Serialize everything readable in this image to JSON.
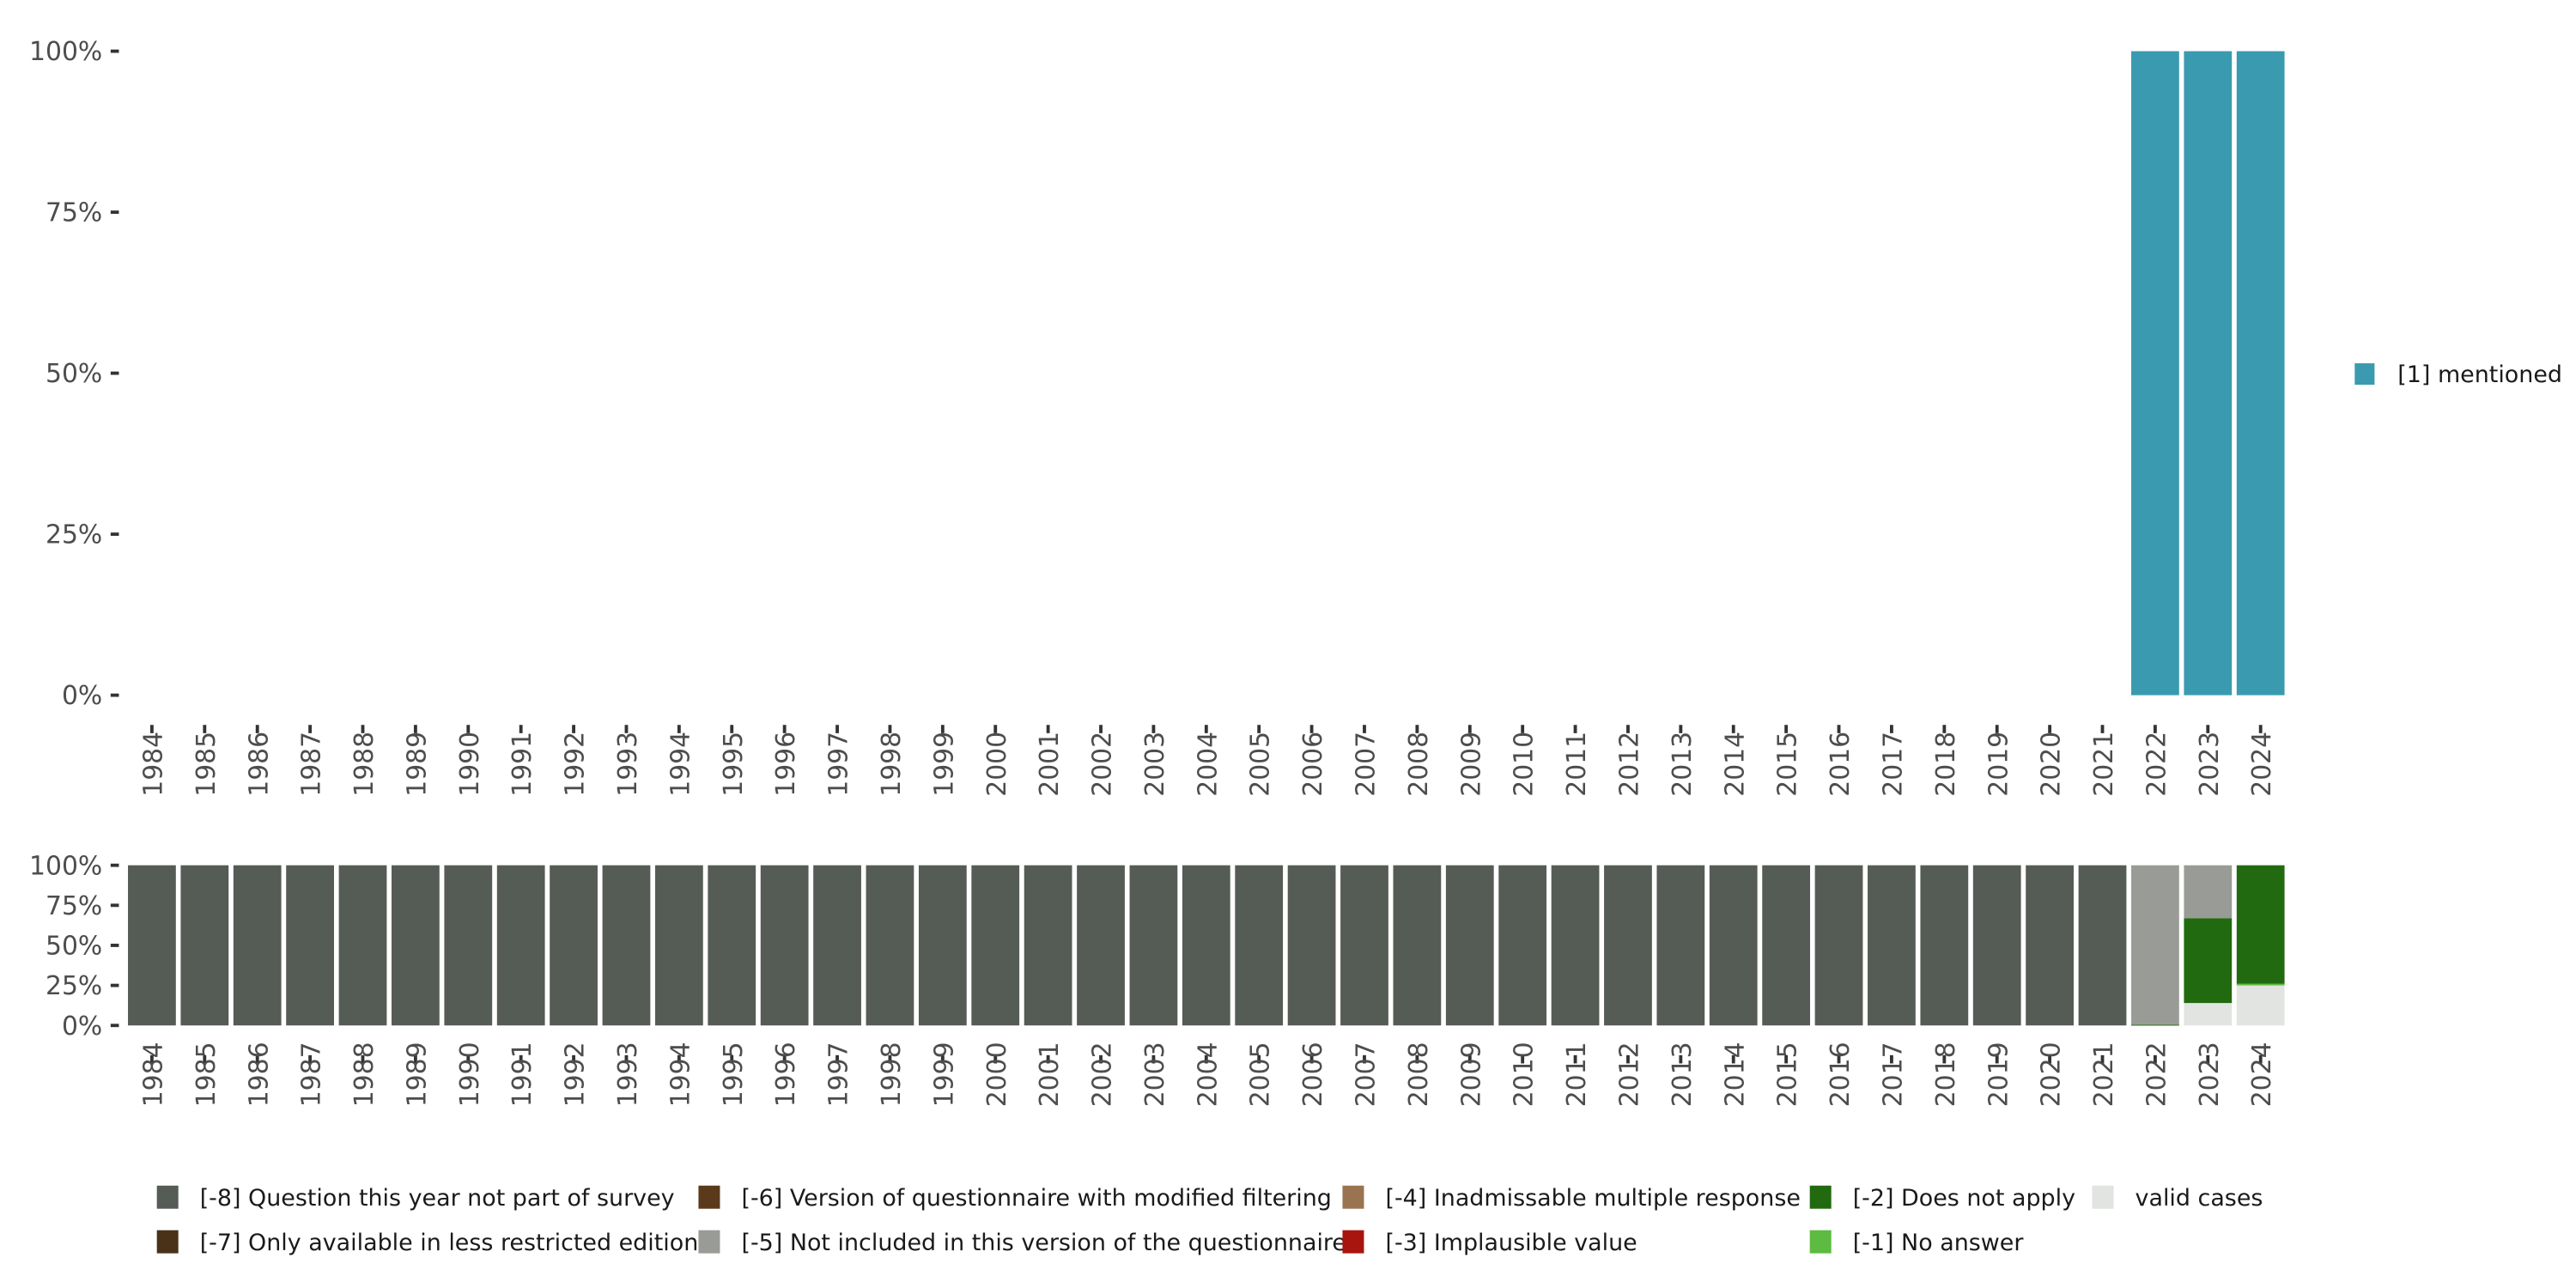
{
  "chart_data": [
    {
      "type": "bar",
      "stacked": true,
      "title": "",
      "xlabel": "",
      "ylabel": "",
      "ylim": [
        0,
        100
      ],
      "yticks": [
        "0%",
        "25%",
        "50%",
        "75%",
        "100%"
      ],
      "categories": [
        "1984",
        "1985",
        "1986",
        "1987",
        "1988",
        "1989",
        "1990",
        "1991",
        "1992",
        "1993",
        "1994",
        "1995",
        "1996",
        "1997",
        "1998",
        "1999",
        "2000",
        "2001",
        "2002",
        "2003",
        "2004",
        "2005",
        "2006",
        "2007",
        "2008",
        "2009",
        "2010",
        "2011",
        "2012",
        "2013",
        "2014",
        "2015",
        "2016",
        "2017",
        "2018",
        "2019",
        "2020",
        "2021",
        "2022",
        "2023",
        "2024"
      ],
      "series": [
        {
          "name": "[1] mentioned",
          "color": "#3a9ab0",
          "values": [
            0,
            0,
            0,
            0,
            0,
            0,
            0,
            0,
            0,
            0,
            0,
            0,
            0,
            0,
            0,
            0,
            0,
            0,
            0,
            0,
            0,
            0,
            0,
            0,
            0,
            0,
            0,
            0,
            0,
            0,
            0,
            0,
            0,
            0,
            0,
            0,
            0,
            0,
            100,
            100,
            100
          ]
        }
      ],
      "legend": "right"
    },
    {
      "type": "bar",
      "stacked": true,
      "title": "",
      "xlabel": "",
      "ylabel": "",
      "ylim": [
        0,
        100
      ],
      "yticks": [
        "0%",
        "25%",
        "50%",
        "75%",
        "100%"
      ],
      "categories": [
        "1984",
        "1985",
        "1986",
        "1987",
        "1988",
        "1989",
        "1990",
        "1991",
        "1992",
        "1993",
        "1994",
        "1995",
        "1996",
        "1997",
        "1998",
        "1999",
        "2000",
        "2001",
        "2002",
        "2003",
        "2004",
        "2005",
        "2006",
        "2007",
        "2008",
        "2009",
        "2010",
        "2011",
        "2012",
        "2013",
        "2014",
        "2015",
        "2016",
        "2017",
        "2018",
        "2019",
        "2020",
        "2021",
        "2022",
        "2023",
        "2024"
      ],
      "series": [
        {
          "name": "valid cases",
          "color": "#e1e4e0",
          "values": [
            0,
            0,
            0,
            0,
            0,
            0,
            0,
            0,
            0,
            0,
            0,
            0,
            0,
            0,
            0,
            0,
            0,
            0,
            0,
            0,
            0,
            0,
            0,
            0,
            0,
            0,
            0,
            0,
            0,
            0,
            0,
            0,
            0,
            0,
            0,
            0,
            0,
            0,
            0,
            14,
            25
          ]
        },
        {
          "name": "[-1] No answer",
          "color": "#5cbb40",
          "values": [
            0,
            0,
            0,
            0,
            0,
            0,
            0,
            0,
            0,
            0,
            0,
            0,
            0,
            0,
            0,
            0,
            0,
            0,
            0,
            0,
            0,
            0,
            0,
            0,
            0,
            0,
            0,
            0,
            0,
            0,
            0,
            0,
            0,
            0,
            0,
            0,
            0,
            0,
            0,
            0,
            1
          ]
        },
        {
          "name": "[-2] Does not apply",
          "color": "#226a10",
          "values": [
            0,
            0,
            0,
            0,
            0,
            0,
            0,
            0,
            0,
            0,
            0,
            0,
            0,
            0,
            0,
            0,
            0,
            0,
            0,
            0,
            0,
            0,
            0,
            0,
            0,
            0,
            0,
            0,
            0,
            0,
            0,
            0,
            0,
            0,
            0,
            0,
            0,
            0,
            0.5,
            53,
            74
          ]
        },
        {
          "name": "[-3] Implausible value",
          "color": "#a8150f",
          "values": [
            0,
            0,
            0,
            0,
            0,
            0,
            0,
            0,
            0,
            0,
            0,
            0,
            0,
            0,
            0,
            0,
            0,
            0,
            0,
            0,
            0,
            0,
            0,
            0,
            0,
            0,
            0,
            0,
            0,
            0,
            0,
            0,
            0,
            0,
            0,
            0,
            0,
            0,
            0,
            0,
            0
          ]
        },
        {
          "name": "[-4] Inadmissable multiple response",
          "color": "#9a7450",
          "values": [
            0,
            0,
            0,
            0,
            0,
            0,
            0,
            0,
            0,
            0,
            0,
            0,
            0,
            0,
            0,
            0,
            0,
            0,
            0,
            0,
            0,
            0,
            0,
            0,
            0,
            0,
            0,
            0,
            0,
            0,
            0,
            0,
            0,
            0,
            0,
            0,
            0,
            0,
            0,
            0,
            0
          ]
        },
        {
          "name": "[-5] Not included in this version of the questionnaire",
          "color": "#999c96",
          "values": [
            0,
            0,
            0,
            0,
            0,
            0,
            0,
            0,
            0,
            0,
            0,
            0,
            0,
            0,
            0,
            0,
            0,
            0,
            0,
            0,
            0,
            0,
            0,
            0,
            0,
            0,
            0,
            0,
            0,
            0,
            0,
            0,
            0,
            0,
            0,
            0,
            0,
            0,
            99.5,
            33,
            0
          ]
        },
        {
          "name": "[-6] Version of questionnaire with modified filtering",
          "color": "#5a3a1a",
          "values": [
            0,
            0,
            0,
            0,
            0,
            0,
            0,
            0,
            0,
            0,
            0,
            0,
            0,
            0,
            0,
            0,
            0,
            0,
            0,
            0,
            0,
            0,
            0,
            0,
            0,
            0,
            0,
            0,
            0,
            0,
            0,
            0,
            0,
            0,
            0,
            0,
            0,
            0,
            0,
            0,
            0
          ]
        },
        {
          "name": "[-7] Only available in less restricted edition",
          "color": "#4a3218",
          "values": [
            0,
            0,
            0,
            0,
            0,
            0,
            0,
            0,
            0,
            0,
            0,
            0,
            0,
            0,
            0,
            0,
            0,
            0,
            0,
            0,
            0,
            0,
            0,
            0,
            0,
            0,
            0,
            0,
            0,
            0,
            0,
            0,
            0,
            0,
            0,
            0,
            0,
            0,
            0,
            0,
            0
          ]
        },
        {
          "name": "[-8] Question this year not part of survey",
          "color": "#555b55",
          "values": [
            100,
            100,
            100,
            100,
            100,
            100,
            100,
            100,
            100,
            100,
            100,
            100,
            100,
            100,
            100,
            100,
            100,
            100,
            100,
            100,
            100,
            100,
            100,
            100,
            100,
            100,
            100,
            100,
            100,
            100,
            100,
            100,
            100,
            100,
            100,
            100,
            100,
            100,
            0,
            0,
            0
          ]
        }
      ],
      "legend_order": [
        "[-8] Question this year not part of survey",
        "[-7] Only available in less restricted edition",
        "[-6] Version of questionnaire with modified filtering",
        "[-5] Not included in this version of the questionnaire",
        "[-4] Inadmissable multiple response",
        "[-3] Implausible value",
        "[-2] Does not apply",
        "[-1] No answer",
        "valid cases"
      ],
      "legend": "bottom"
    }
  ]
}
